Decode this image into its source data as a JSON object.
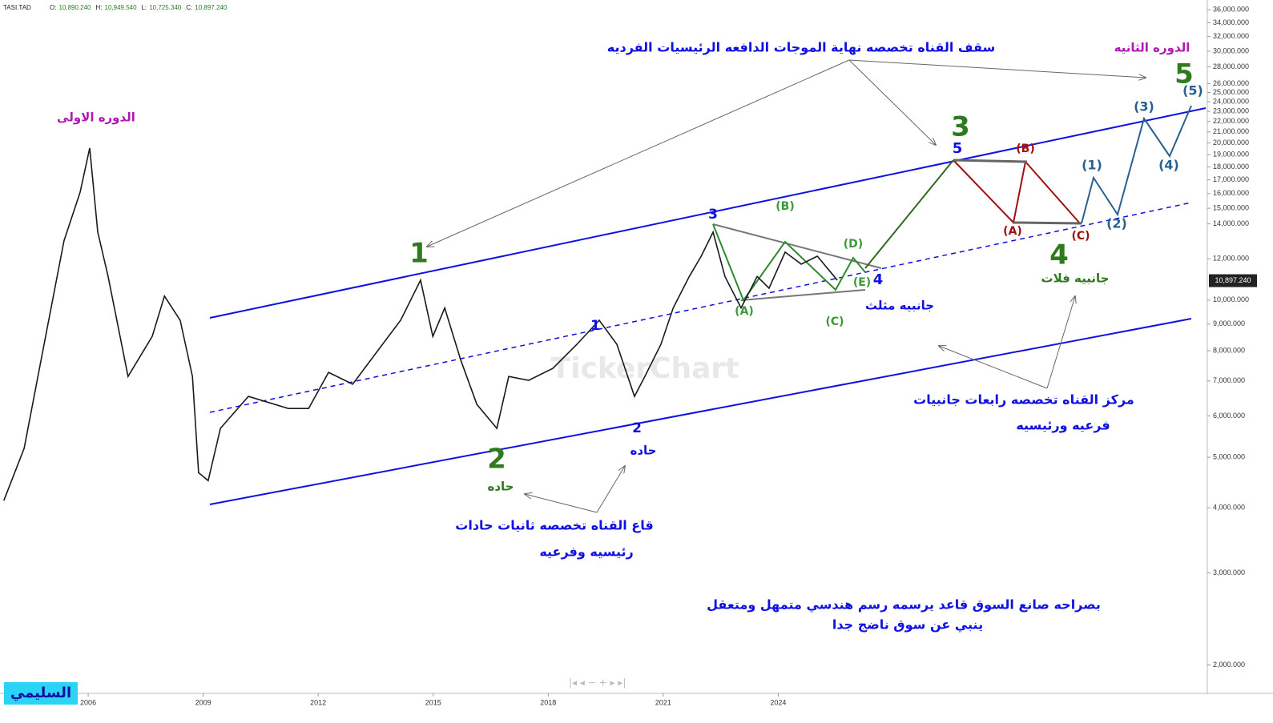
{
  "chart_data": {
    "type": "line",
    "log_scale": true,
    "color": "#1a1a1a",
    "symbol": "TASI.TAD",
    "quote": [
      {
        "name": "O:",
        "price": {
          "value": 10890.24,
          "label": "10,890.240"
        }
      },
      {
        "name": "H:",
        "price": {
          "value": 10949.54,
          "label": "10,949.540"
        }
      },
      {
        "name": "L:",
        "price": {
          "value": 10725.34,
          "label": "10,725.340"
        }
      },
      {
        "name": "C:",
        "price": {
          "value": 10897.24,
          "label": "10,897.240"
        }
      }
    ],
    "last_price": {
      "value": 10897.24,
      "label": "10,897.240"
    },
    "x": [
      2003.8,
      2004.33,
      2004.85,
      2005.37,
      2005.79,
      2006.04,
      2006.25,
      2006.52,
      2007.04,
      2007.67,
      2007.99,
      2008.4,
      2008.72,
      2008.88,
      2009.13,
      2009.45,
      2010.18,
      2011.22,
      2011.75,
      2012.27,
      2012.9,
      2013.52,
      2014.15,
      2014.67,
      2014.99,
      2015.3,
      2015.72,
      2016.14,
      2016.66,
      2016.97,
      2017.49,
      2018.12,
      2018.75,
      2019.33,
      2019.79,
      2020.25,
      2020.52,
      2020.94,
      2021.26,
      2021.68,
      2021.99,
      2022.3,
      2022.61,
      2023.03,
      2023.45,
      2023.76,
      2024.18,
      2024.6,
      2025.02,
      2025.54
    ],
    "values": [
      4130,
      5200,
      8230,
      13000,
      16100,
      19560,
      13500,
      11100,
      7140,
      8520,
      10180,
      9150,
      7140,
      4670,
      4510,
      5680,
      6540,
      6200,
      6200,
      7270,
      6900,
      7940,
      9150,
      10920,
      8520,
      9660,
      7670,
      6310,
      5680,
      7140,
      7020,
      7400,
      8230,
      9150,
      8230,
      6540,
      7140,
      8230,
      9660,
      11100,
      12140,
      13500,
      11100,
      9660,
      11100,
      10540,
      12360,
      11720,
      12140,
      10920
    ],
    "xlim": [
      2003.7,
      2035.15
    ],
    "xticks": [
      2006,
      2009,
      2012,
      2015,
      2018,
      2021,
      2024
    ],
    "ylim": [
      1770,
      37200
    ],
    "yticks": [
      {
        "value": 2000,
        "label": "2,000.000"
      },
      {
        "value": 3000,
        "label": "3,000.000"
      },
      {
        "value": 4000,
        "label": "4,000.000"
      },
      {
        "value": 5000,
        "label": "5,000.000"
      },
      {
        "value": 6000,
        "label": "6,000.000"
      },
      {
        "value": 7000,
        "label": "7,000.000"
      },
      {
        "value": 8000,
        "label": "8,000.000"
      },
      {
        "value": 9000,
        "label": "9,000.000"
      },
      {
        "value": 10000,
        "label": "10,000.000"
      },
      {
        "value": 12000,
        "label": "12,000.000"
      },
      {
        "value": 14000,
        "label": "14,000.000"
      },
      {
        "value": 15000,
        "label": "15,000.000"
      },
      {
        "value": 16000,
        "label": "16,000.000"
      },
      {
        "value": 17000,
        "label": "17,000.000"
      },
      {
        "value": 18000,
        "label": "18,000.000"
      },
      {
        "value": 19000,
        "label": "19,000.000"
      },
      {
        "value": 20000,
        "label": "20,000.000"
      },
      {
        "value": 21000,
        "label": "21,000.000"
      },
      {
        "value": 22000,
        "label": "22,000.000"
      },
      {
        "value": 23000,
        "label": "23,000.000"
      },
      {
        "value": 24000,
        "label": "24,000.000"
      },
      {
        "value": 25000,
        "label": "25,000.000"
      },
      {
        "value": 26000,
        "label": "26,000.000"
      },
      {
        "value": 28000,
        "label": "28,000.000"
      },
      {
        "value": 30000,
        "label": "30,000.000"
      },
      {
        "value": 32000,
        "label": "32,000.000"
      },
      {
        "value": 34000,
        "label": "34,000.000"
      },
      {
        "value": 36000,
        "label": "36,000.000"
      }
    ],
    "watermark": "TickerChart",
    "brand": "السليمي",
    "annotations": [
      "سقف القناه تخصصه نهاية الموجات الدافعه الرئيسيات  الفرديه",
      "الدوره الثانيه",
      "الدوره الاولى",
      "1",
      "2",
      "حاده",
      "2",
      "حاده",
      "1",
      "3",
      "قاع القناه تخصصه ثانيات حادات",
      "رئيسيه وفرعيه",
      "(A)",
      "(B)",
      "(C)",
      "(D)",
      "(E)",
      "4",
      "جانبيه مثلث",
      "3",
      "5",
      "(A)",
      "(B)",
      "(C)",
      "4",
      "جانبيه فلات",
      "(1)",
      "(2)",
      "(3)",
      "(4)",
      "(5)",
      "5",
      "مركز القناه تخصصه رابعات جانبيات",
      "فرعيه ورئيسيه",
      "بصراحه صانع السوق قاعد يرسمه رسم هندسي  متمهل ومتعقل",
      "ينبي عن سوق ناضج جدا"
    ]
  }
}
